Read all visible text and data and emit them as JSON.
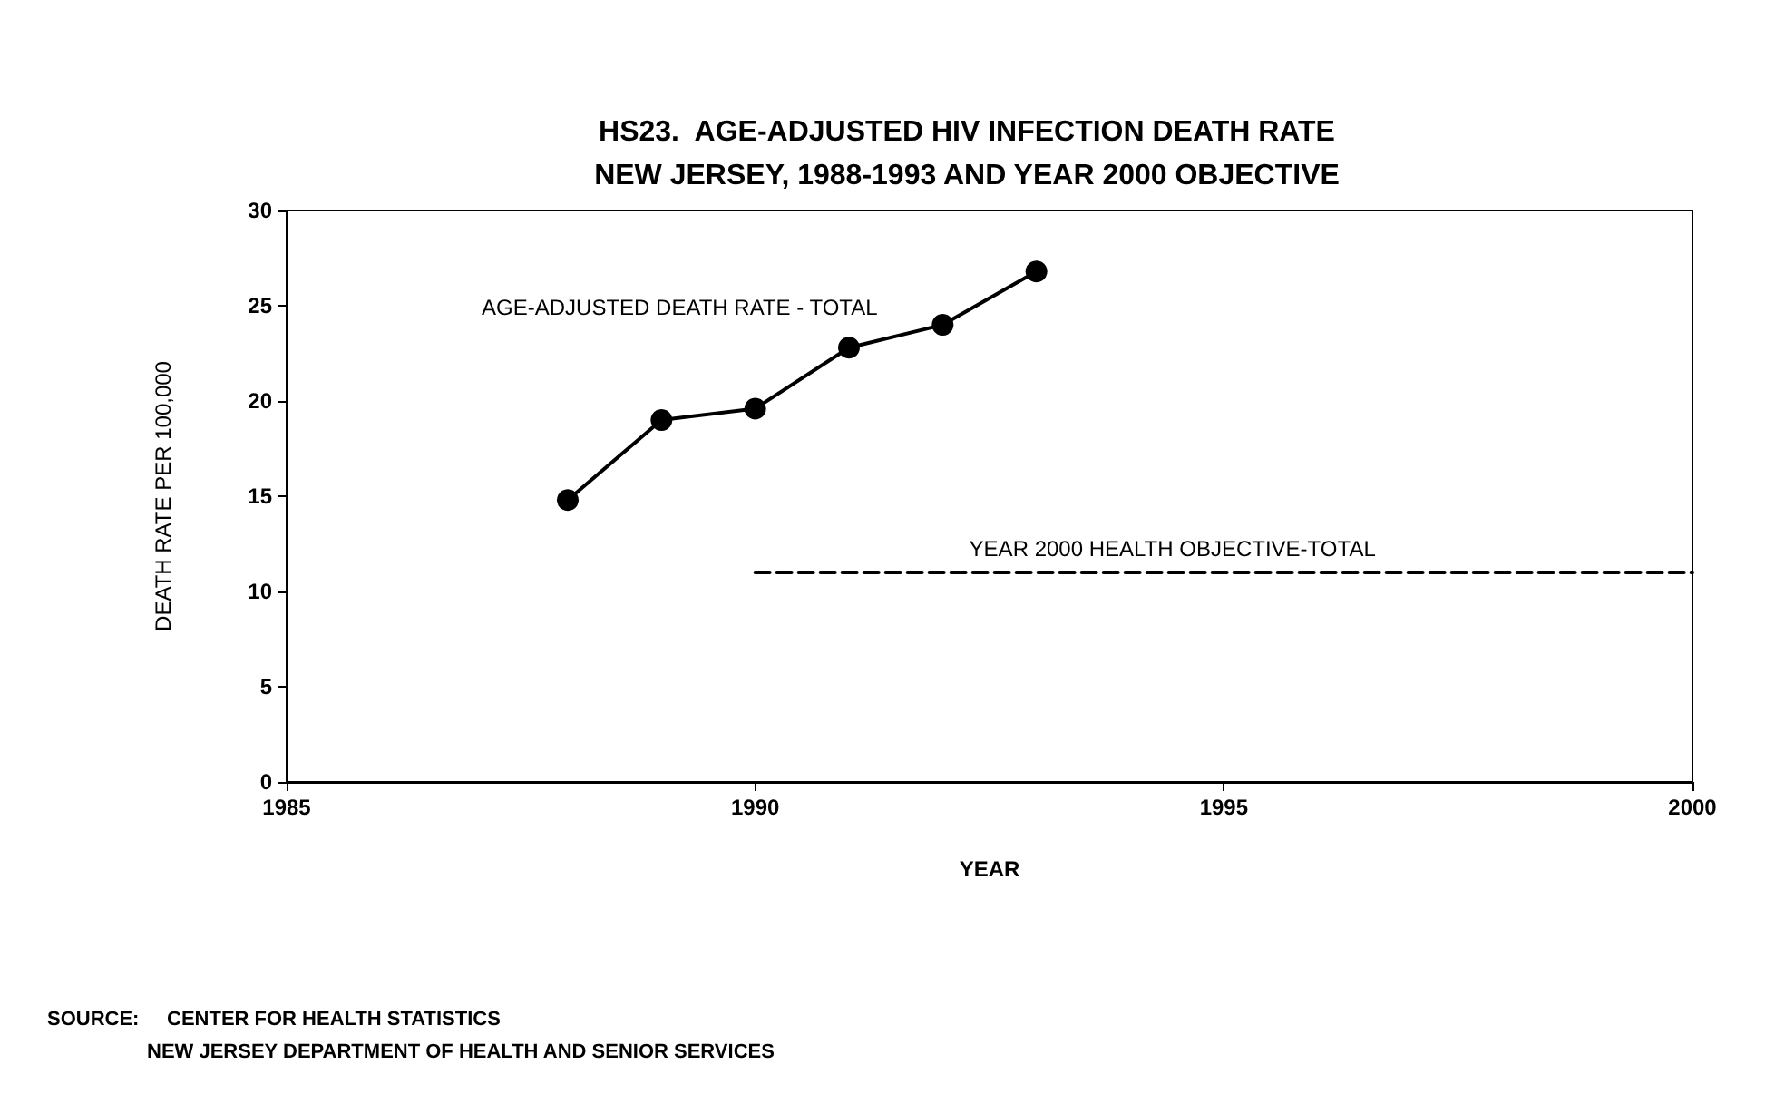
{
  "chart_data": {
    "type": "line",
    "title": "HS23.  AGE-ADJUSTED HIV INFECTION DEATH RATE\nNEW JERSEY, 1988-1993 AND YEAR 2000 OBJECTIVE",
    "xlabel": "YEAR",
    "ylabel": "DEATH RATE PER 100,000",
    "series": [
      {
        "name": "AGE-ADJUSTED DEATH RATE - TOTAL",
        "color": "#000000",
        "x": [
          1988,
          1989,
          1990,
          1991,
          1992,
          1993
        ],
        "values": [
          14.8,
          19.0,
          19.6,
          22.8,
          24.0,
          26.8
        ],
        "marker": "circle",
        "line_style": "solid"
      },
      {
        "name": "YEAR 2000 HEALTH OBJECTIVE-TOTAL",
        "color": "#000000",
        "x": [
          1990,
          2000
        ],
        "values": [
          11,
          11
        ],
        "marker": "none",
        "line_style": "dashed"
      }
    ],
    "xlim": [
      1985,
      2000
    ],
    "xticks": [
      1985,
      1990,
      1995,
      2000
    ],
    "ylim": [
      0,
      30
    ],
    "yticks": [
      0,
      5,
      10,
      15,
      20,
      25,
      30
    ],
    "grid": false,
    "legend": false,
    "annotations": [
      "SOURCE:     CENTER FOR HEALTH STATISTICS\n                  NEW JERSEY DEPARTMENT OF HEALTH AND SENIOR SERVICES"
    ]
  }
}
